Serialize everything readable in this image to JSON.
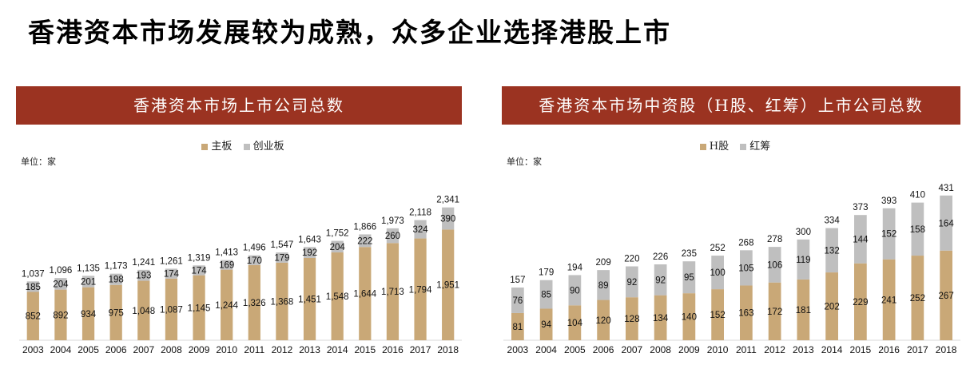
{
  "page_title": "香港资本市场发展较为成熟，众多企业选择港股上市",
  "colors": {
    "banner": "#9b3321",
    "series_main": "#c9a877",
    "series_second": "#bfbfbf"
  },
  "chart_data": [
    {
      "type": "bar",
      "stacked": true,
      "title": "香港资本市场上市公司总数",
      "unit_label": "单位：家",
      "legend_position": "top",
      "categories": [
        "2003",
        "2004",
        "2005",
        "2006",
        "2007",
        "2008",
        "2009",
        "2010",
        "2011",
        "2012",
        "2013",
        "2014",
        "2015",
        "2016",
        "2017",
        "2018"
      ],
      "series": [
        {
          "name": "主板",
          "color": "#c9a877",
          "values": [
            852,
            892,
            934,
            975,
            1048,
            1087,
            1145,
            1244,
            1326,
            1368,
            1451,
            1548,
            1644,
            1713,
            1794,
            1951
          ],
          "labels": [
            "852",
            "892",
            "934",
            "975",
            "1,048",
            "1,087",
            "1,145",
            "1,244",
            "1,326",
            "1,368",
            "1,451",
            "1,548",
            "1,644",
            "1,713",
            "1,794",
            "1,951"
          ]
        },
        {
          "name": "创业板",
          "color": "#bfbfbf",
          "values": [
            185,
            204,
            201,
            198,
            193,
            174,
            174,
            169,
            170,
            179,
            192,
            204,
            222,
            260,
            324,
            390
          ],
          "labels": [
            "185",
            "204",
            "201",
            "198",
            "193",
            "174",
            "174",
            "169",
            "170",
            "179",
            "192",
            "204",
            "222",
            "260",
            "324",
            "390"
          ]
        }
      ],
      "totals": [
        "1,037",
        "1,096",
        "1,135",
        "1,173",
        "1,241",
        "1,261",
        "1,319",
        "1,413",
        "1,496",
        "1,547",
        "1,643",
        "1,752",
        "1,866",
        "1,973",
        "2,118",
        "2,341"
      ],
      "ylim": [
        0,
        2900
      ]
    },
    {
      "type": "bar",
      "stacked": true,
      "title": "香港资本市场中资股（H股、红筹）上市公司总数",
      "unit_label": "单位：家",
      "legend_position": "top",
      "categories": [
        "2003",
        "2004",
        "2005",
        "2006",
        "2007",
        "2008",
        "2009",
        "2010",
        "2011",
        "2012",
        "2013",
        "2014",
        "2015",
        "2016",
        "2017",
        "2018"
      ],
      "series": [
        {
          "name": "H股",
          "color": "#c9a877",
          "values": [
            81,
            94,
            104,
            120,
            128,
            134,
            140,
            152,
            163,
            172,
            181,
            202,
            229,
            241,
            252,
            267
          ],
          "labels": [
            "81",
            "94",
            "104",
            "120",
            "128",
            "134",
            "140",
            "152",
            "163",
            "172",
            "181",
            "202",
            "229",
            "241",
            "252",
            "267"
          ]
        },
        {
          "name": "红筹",
          "color": "#bfbfbf",
          "values": [
            76,
            85,
            90,
            89,
            92,
            92,
            95,
            100,
            105,
            106,
            119,
            132,
            144,
            152,
            158,
            164
          ],
          "labels": [
            "76",
            "85",
            "90",
            "89",
            "92",
            "92",
            "95",
            "100",
            "105",
            "106",
            "119",
            "132",
            "144",
            "152",
            "158",
            "164"
          ]
        }
      ],
      "totals": [
        "157",
        "179",
        "194",
        "209",
        "220",
        "226",
        "235",
        "252",
        "268",
        "278",
        "300",
        "334",
        "373",
        "393",
        "410",
        "431"
      ],
      "ylim": [
        0,
        490
      ]
    }
  ]
}
